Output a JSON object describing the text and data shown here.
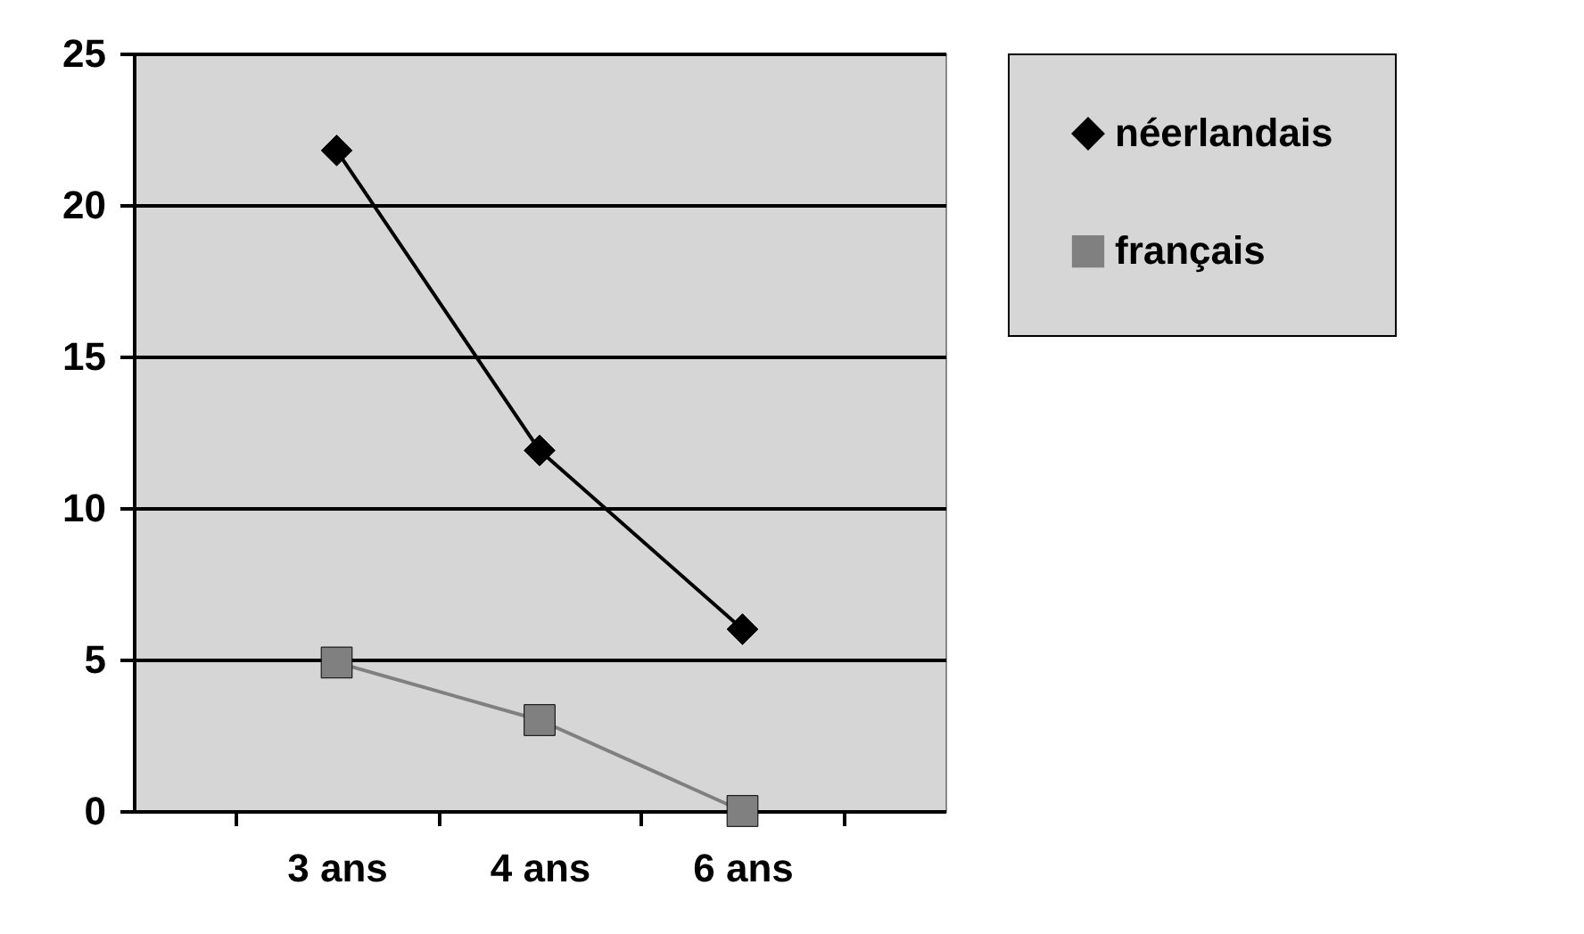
{
  "chart_data": {
    "type": "line",
    "categories": [
      "3 ans",
      "4 ans",
      "6 ans"
    ],
    "series": [
      {
        "name": "néerlandais",
        "color": "#000000",
        "marker": "diamond",
        "values": [
          21.8,
          11.9,
          6
        ]
      },
      {
        "name": "français",
        "color": "#808080",
        "marker": "square",
        "values": [
          4.9,
          3,
          0
        ]
      }
    ],
    "ylim": [
      0,
      25
    ],
    "yticks": [
      0,
      5,
      10,
      15,
      20,
      25
    ],
    "grid": "y",
    "legend": "right",
    "line_style": "solid"
  }
}
